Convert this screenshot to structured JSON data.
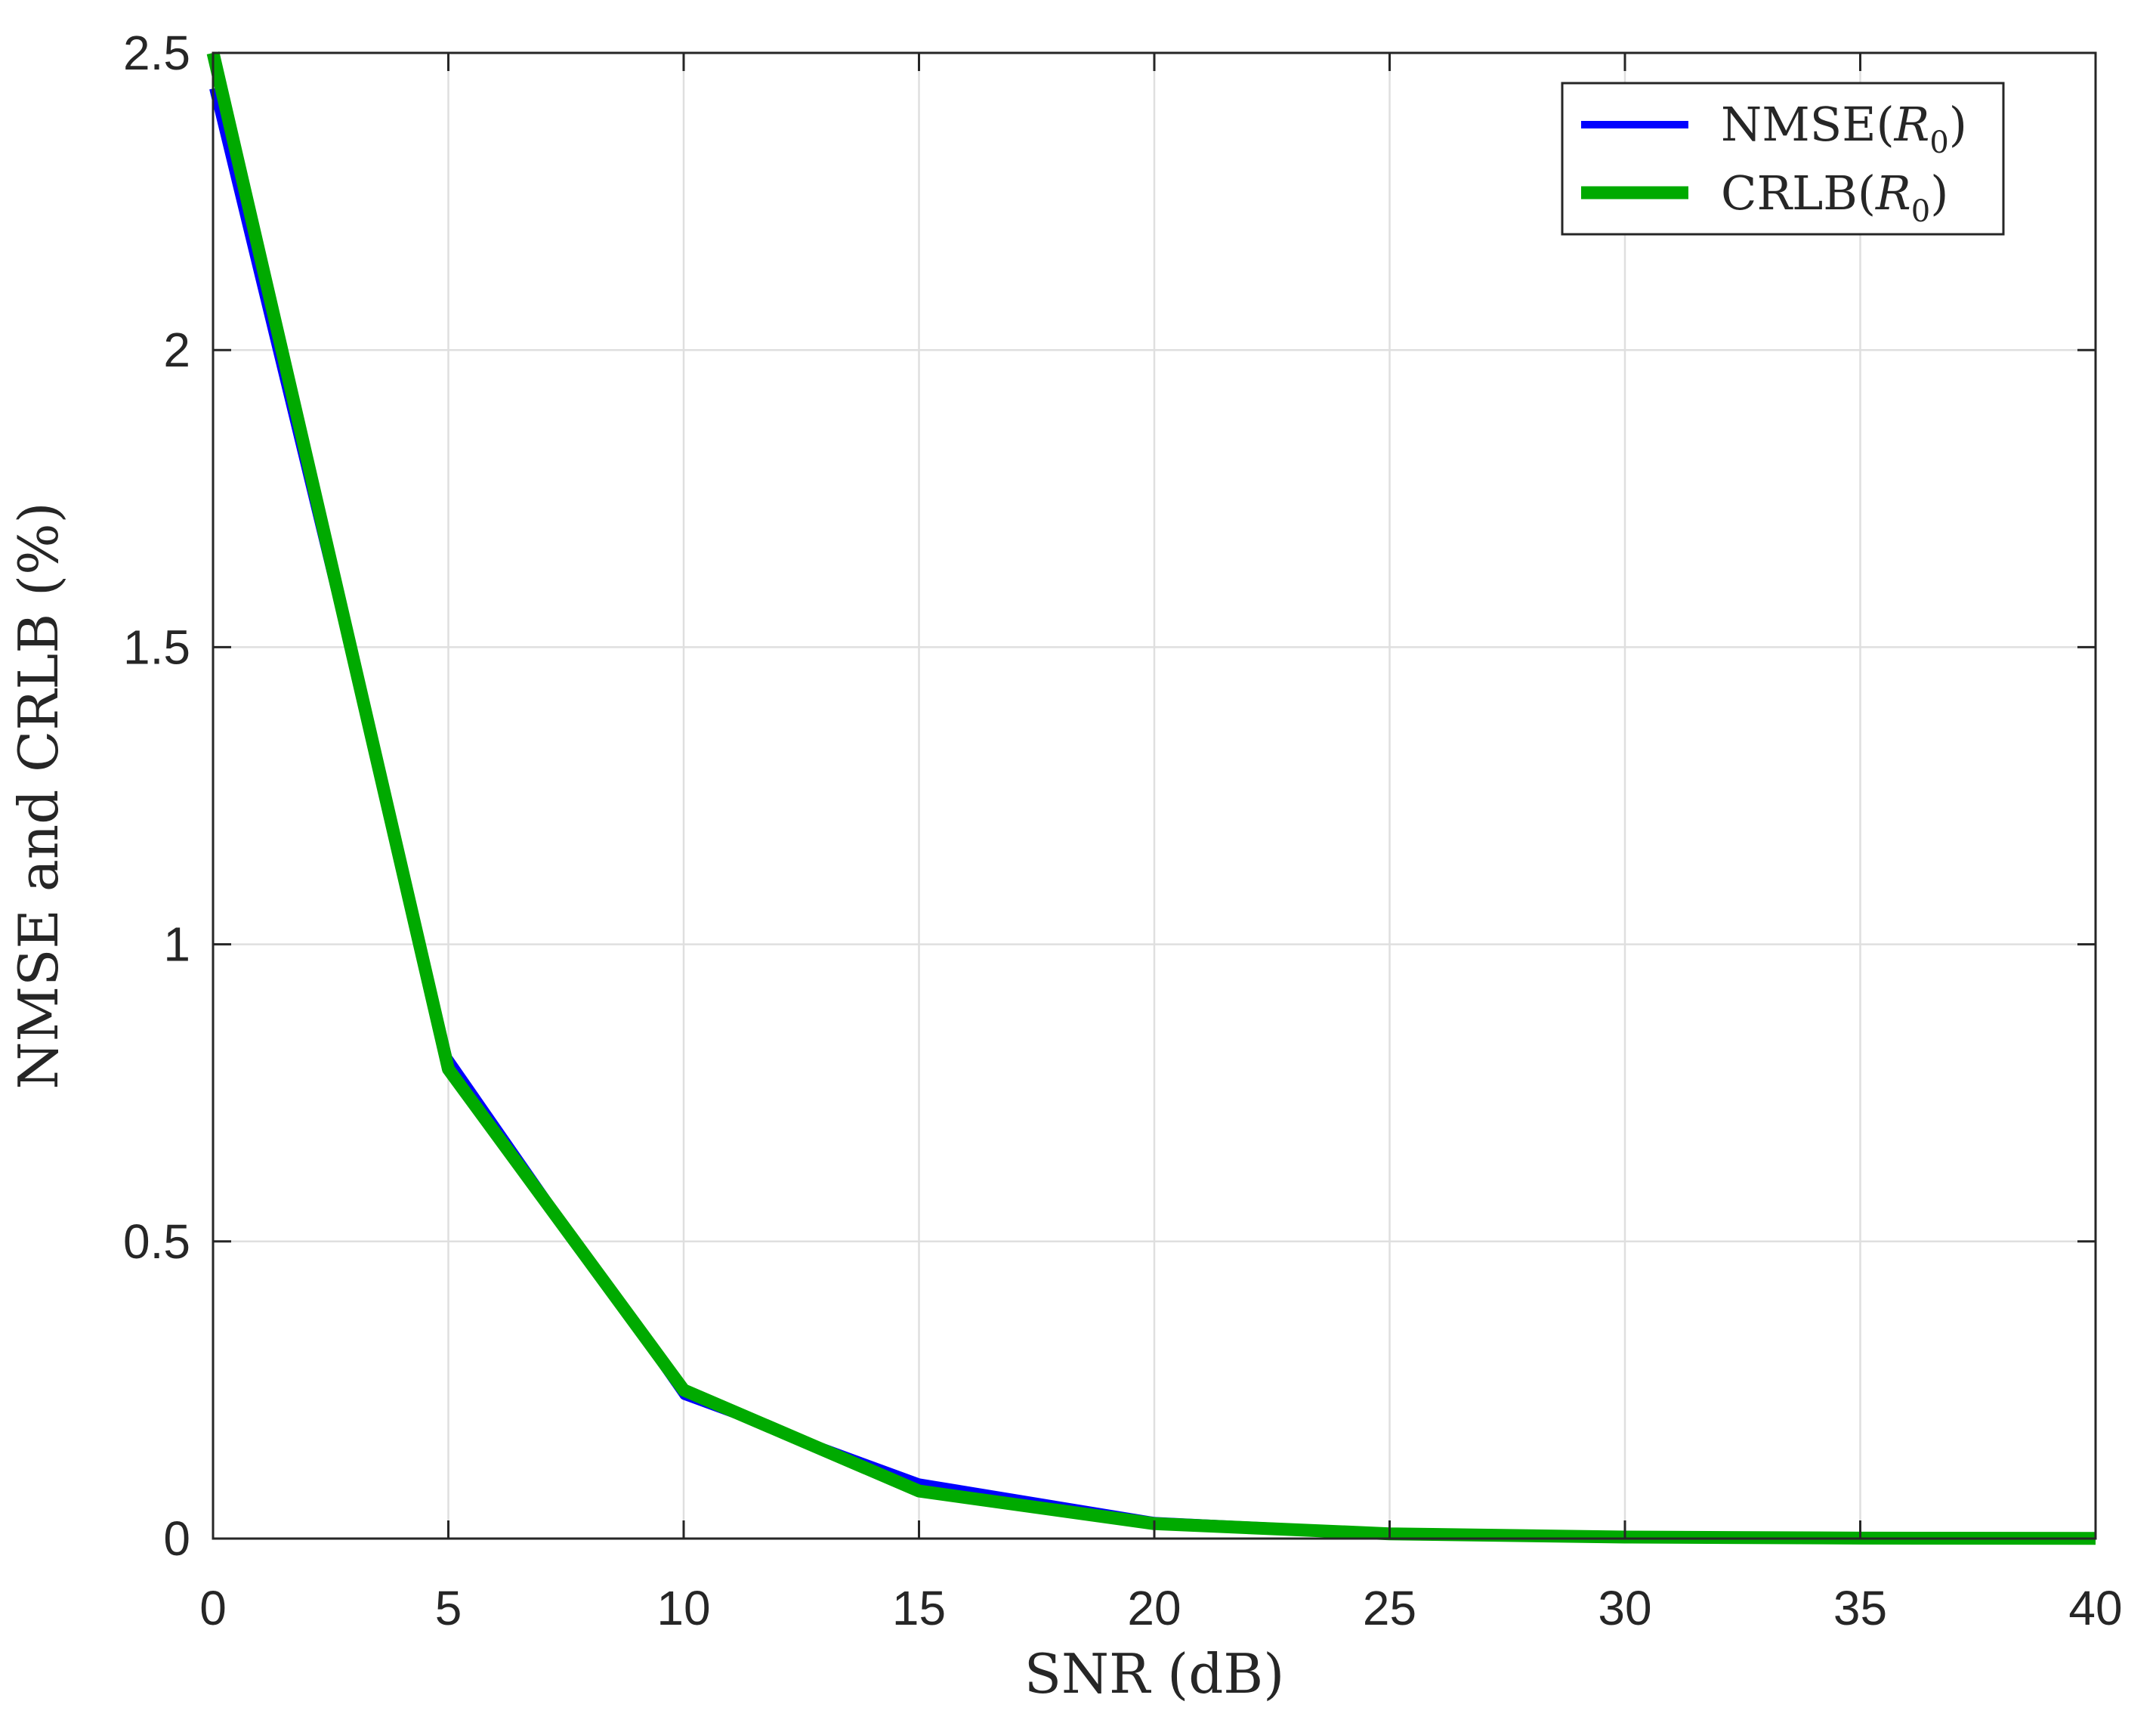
{
  "chart_data": {
    "type": "line",
    "title": "",
    "xlabel": "SNR (dB)",
    "ylabel": "NMSE and CRLB (%)",
    "xlim": [
      0,
      40
    ],
    "ylim": [
      0,
      2.5
    ],
    "xticks": [
      0,
      5,
      10,
      15,
      20,
      25,
      30,
      35,
      40
    ],
    "yticks": [
      0,
      0.5,
      1,
      1.5,
      2,
      2.5
    ],
    "xtick_labels": [
      "0",
      "5",
      "10",
      "15",
      "20",
      "25",
      "30",
      "35",
      "40"
    ],
    "ytick_labels": [
      "0",
      "0.5",
      "1",
      "1.5",
      "2",
      "2.5"
    ],
    "grid": true,
    "legend_position": "top-right",
    "x": [
      0,
      5,
      10,
      15,
      20,
      25,
      30,
      35,
      40
    ],
    "series": [
      {
        "name": "NMSE(R0)",
        "name_main": "NMSE(",
        "name_var": "R",
        "name_sub": "0",
        "name_end": ")",
        "color": "#0000ff",
        "values": [
          2.44,
          0.81,
          0.24,
          0.095,
          0.03,
          0.011,
          0.005,
          0.002,
          0.001
        ]
      },
      {
        "name": "CRLB(R0)",
        "name_main": "CRLB(",
        "name_var": "R",
        "name_sub": "0",
        "name_end": ")",
        "color": "#00aa00",
        "values": [
          2.5,
          0.79,
          0.25,
          0.08,
          0.025,
          0.008,
          0.0025,
          0.0008,
          0.00025
        ]
      }
    ]
  }
}
